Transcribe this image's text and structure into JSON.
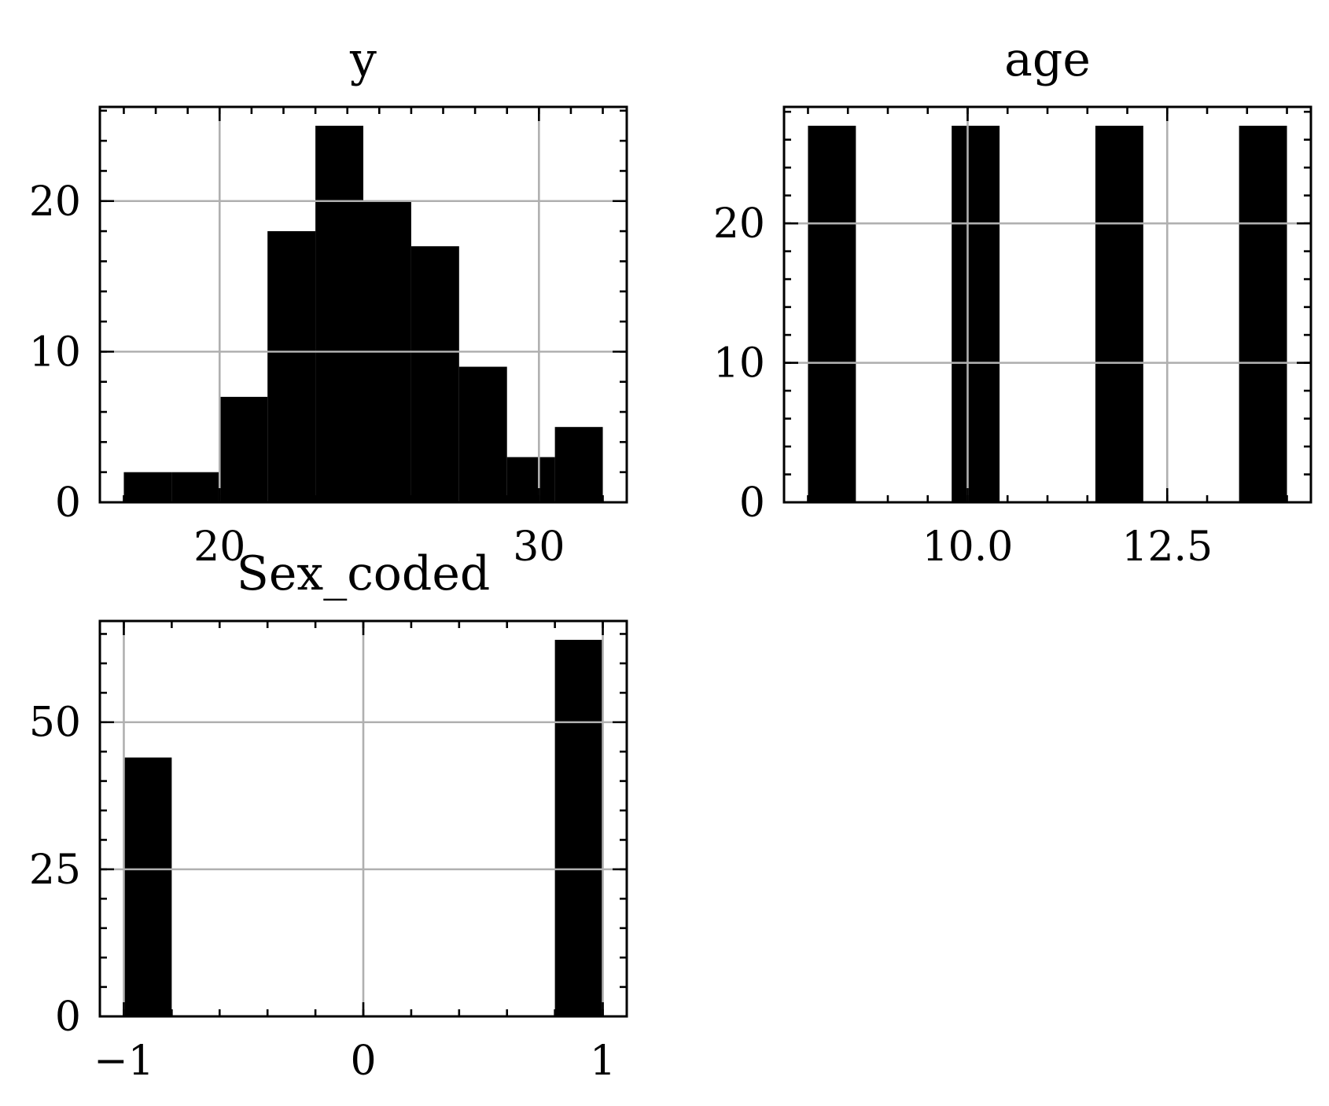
{
  "chart_data": [
    {
      "type": "bar",
      "title": "y",
      "bins": [
        {
          "x0": 17.0,
          "x1": 18.5,
          "count": 2
        },
        {
          "x0": 18.5,
          "x1": 20.0,
          "count": 2
        },
        {
          "x0": 20.0,
          "x1": 21.5,
          "count": 7
        },
        {
          "x0": 21.5,
          "x1": 23.0,
          "count": 18
        },
        {
          "x0": 23.0,
          "x1": 24.5,
          "count": 25
        },
        {
          "x0": 24.5,
          "x1": 26.0,
          "count": 20
        },
        {
          "x0": 26.0,
          "x1": 27.5,
          "count": 17
        },
        {
          "x0": 27.5,
          "x1": 29.0,
          "count": 9
        },
        {
          "x0": 29.0,
          "x1": 30.5,
          "count": 3
        },
        {
          "x0": 30.5,
          "x1": 32.0,
          "count": 5
        }
      ],
      "xticks": [
        20,
        30
      ],
      "xtick_labels": [
        "20",
        "30"
      ],
      "yticks": [
        0,
        10,
        20
      ],
      "ytick_labels": [
        "0",
        "10",
        "20"
      ],
      "xlim": [
        16.25,
        32.75
      ],
      "ylim": [
        0,
        26.25
      ],
      "grid": true
    },
    {
      "type": "bar",
      "title": "age",
      "bins": [
        {
          "x0": 8.0,
          "x1": 8.6,
          "count": 27
        },
        {
          "x0": 8.6,
          "x1": 9.2,
          "count": 0
        },
        {
          "x0": 9.2,
          "x1": 9.8,
          "count": 0
        },
        {
          "x0": 9.8,
          "x1": 10.4,
          "count": 27
        },
        {
          "x0": 10.4,
          "x1": 11.0,
          "count": 0
        },
        {
          "x0": 11.0,
          "x1": 11.6,
          "count": 0
        },
        {
          "x0": 11.6,
          "x1": 12.2,
          "count": 27
        },
        {
          "x0": 12.2,
          "x1": 12.8,
          "count": 0
        },
        {
          "x0": 12.8,
          "x1": 13.4,
          "count": 0
        },
        {
          "x0": 13.4,
          "x1": 14.0,
          "count": 27
        }
      ],
      "xticks": [
        10.0,
        12.5
      ],
      "xtick_labels": [
        "10.0",
        "12.5"
      ],
      "yticks": [
        0,
        10,
        20
      ],
      "ytick_labels": [
        "0",
        "10",
        "20"
      ],
      "xlim": [
        7.7,
        14.3
      ],
      "ylim": [
        0,
        28.35
      ],
      "grid": true
    },
    {
      "type": "bar",
      "title": "Sex_coded",
      "bins": [
        {
          "x0": -1.0,
          "x1": -0.8,
          "count": 44
        },
        {
          "x0": -0.8,
          "x1": -0.6,
          "count": 0
        },
        {
          "x0": -0.6,
          "x1": -0.4,
          "count": 0
        },
        {
          "x0": -0.4,
          "x1": -0.2,
          "count": 0
        },
        {
          "x0": -0.2,
          "x1": 0.0,
          "count": 0
        },
        {
          "x0": 0.0,
          "x1": 0.2,
          "count": 0
        },
        {
          "x0": 0.2,
          "x1": 0.4,
          "count": 0
        },
        {
          "x0": 0.4,
          "x1": 0.6,
          "count": 0
        },
        {
          "x0": 0.6,
          "x1": 0.8,
          "count": 0
        },
        {
          "x0": 0.8,
          "x1": 1.0,
          "count": 64
        }
      ],
      "xticks": [
        -1,
        0,
        1
      ],
      "xtick_labels": [
        "−1",
        "0",
        "1"
      ],
      "yticks": [
        0,
        25,
        50
      ],
      "ytick_labels": [
        "0",
        "25",
        "50"
      ],
      "xlim": [
        -1.1,
        1.1
      ],
      "ylim": [
        0,
        67.2
      ],
      "grid": true
    }
  ]
}
